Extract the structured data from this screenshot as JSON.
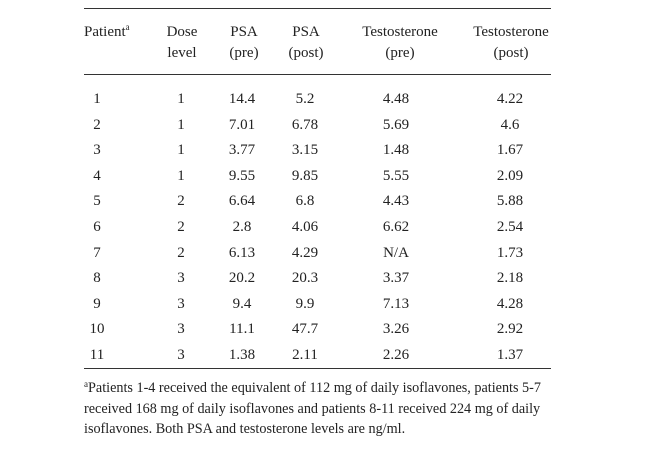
{
  "table": {
    "headers": {
      "patient": "Patient",
      "patient_marker": "a",
      "dose_line1": "Dose",
      "dose_line2": "level",
      "psa_pre_line1": "PSA",
      "psa_pre_line2": "(pre)",
      "psa_post_line1": "PSA",
      "psa_post_line2": "(post)",
      "testo_pre_line1": "Testosterone",
      "testo_pre_line2": "(pre)",
      "testo_post_line1": "Testosterone",
      "testo_post_line2": "(post)"
    },
    "rows": [
      {
        "patient": "1",
        "dose": "1",
        "psa_pre": "14.4",
        "psa_post": "5.2",
        "testo_pre": "4.48",
        "testo_post": "4.22"
      },
      {
        "patient": "2",
        "dose": "1",
        "psa_pre": "7.01",
        "psa_post": "6.78",
        "testo_pre": "5.69",
        "testo_post": "4.6"
      },
      {
        "patient": "3",
        "dose": "1",
        "psa_pre": "3.77",
        "psa_post": "3.15",
        "testo_pre": "1.48",
        "testo_post": "1.67"
      },
      {
        "patient": "4",
        "dose": "1",
        "psa_pre": "9.55",
        "psa_post": "9.85",
        "testo_pre": "5.55",
        "testo_post": "2.09"
      },
      {
        "patient": "5",
        "dose": "2",
        "psa_pre": "6.64",
        "psa_post": "6.8",
        "testo_pre": "4.43",
        "testo_post": "5.88"
      },
      {
        "patient": "6",
        "dose": "2",
        "psa_pre": "2.8",
        "psa_post": "4.06",
        "testo_pre": "6.62",
        "testo_post": "2.54"
      },
      {
        "patient": "7",
        "dose": "2",
        "psa_pre": "6.13",
        "psa_post": "4.29",
        "testo_pre": "N/A",
        "testo_post": "1.73"
      },
      {
        "patient": "8",
        "dose": "3",
        "psa_pre": "20.2",
        "psa_post": "20.3",
        "testo_pre": "3.37",
        "testo_post": "2.18"
      },
      {
        "patient": "9",
        "dose": "3",
        "psa_pre": "9.4",
        "psa_post": "9.9",
        "testo_pre": "7.13",
        "testo_post": "4.28"
      },
      {
        "patient": "10",
        "dose": "3",
        "psa_pre": "11.1",
        "psa_post": "47.7",
        "testo_pre": "3.26",
        "testo_post": "2.92"
      },
      {
        "patient": "11",
        "dose": "3",
        "psa_pre": "1.38",
        "psa_post": "2.11",
        "testo_pre": "2.26",
        "testo_post": "1.37"
      }
    ]
  },
  "footnote": {
    "marker": "a",
    "text": "Patients 1-4 received the equivalent of 112 mg of daily isoflavones, patients 5-7 received 168 mg of daily isoflavones and patients 8-11 received 224 mg of daily isoflavones. Both PSA and testosterone levels are ng/ml."
  }
}
